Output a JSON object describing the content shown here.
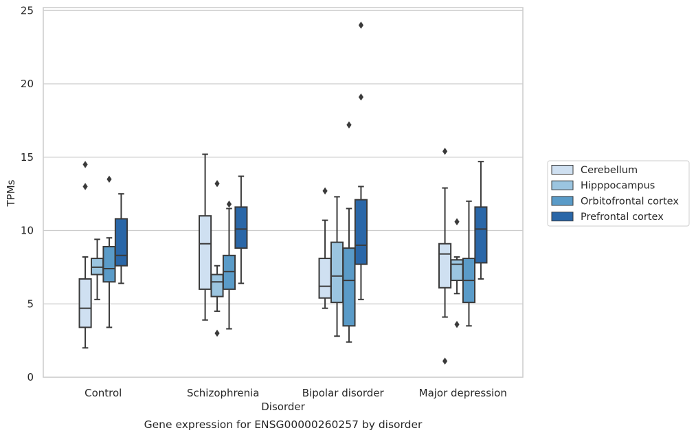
{
  "chart_data": {
    "type": "box",
    "caption": "Gene expression for ENSG00000260257 by disorder",
    "xlabel": "Disorder",
    "ylabel": "TPMs",
    "ylim": [
      0,
      25.2
    ],
    "yticks": [
      0,
      5,
      10,
      15,
      20,
      25
    ],
    "grid": true,
    "legend_position": "right",
    "categories": [
      "Control",
      "Schizophrenia",
      "Bipolar disorder",
      "Major depression"
    ],
    "series": [
      {
        "name": "Cerebellum",
        "color": "#cfe0f1",
        "boxes": [
          {
            "whislo": 2.0,
            "q1": 3.4,
            "med": 4.7,
            "q3": 6.7,
            "whishi": 8.2,
            "fliers": [
              13.0,
              14.5
            ]
          },
          {
            "whislo": 3.9,
            "q1": 6.0,
            "med": 9.1,
            "q3": 11.0,
            "whishi": 15.2,
            "fliers": []
          },
          {
            "whislo": 4.7,
            "q1": 5.4,
            "med": 6.2,
            "q3": 8.1,
            "whishi": 10.7,
            "fliers": [
              12.7
            ]
          },
          {
            "whislo": 4.1,
            "q1": 6.1,
            "med": 8.4,
            "q3": 9.1,
            "whishi": 12.9,
            "fliers": [
              1.1,
              15.4
            ]
          }
        ]
      },
      {
        "name": "Hipppocampus",
        "color": "#9bc5e0",
        "boxes": [
          {
            "whislo": 5.3,
            "q1": 7.0,
            "med": 7.5,
            "q3": 8.1,
            "whishi": 9.4,
            "fliers": []
          },
          {
            "whislo": 4.5,
            "q1": 5.5,
            "med": 6.5,
            "q3": 7.0,
            "whishi": 7.6,
            "fliers": [
              3.0,
              13.2
            ]
          },
          {
            "whislo": 2.8,
            "q1": 5.1,
            "med": 6.9,
            "q3": 9.2,
            "whishi": 12.3,
            "fliers": []
          },
          {
            "whislo": 5.7,
            "q1": 6.6,
            "med": 7.7,
            "q3": 8.0,
            "whishi": 8.2,
            "fliers": [
              3.6,
              10.6
            ]
          }
        ]
      },
      {
        "name": "Orbitofrontal cortex",
        "color": "#5a9bc8",
        "boxes": [
          {
            "whislo": 3.4,
            "q1": 6.5,
            "med": 7.4,
            "q3": 8.9,
            "whishi": 9.5,
            "fliers": [
              13.5
            ]
          },
          {
            "whislo": 3.3,
            "q1": 6.0,
            "med": 7.2,
            "q3": 8.3,
            "whishi": 11.5,
            "fliers": [
              11.8
            ]
          },
          {
            "whislo": 2.4,
            "q1": 3.5,
            "med": 6.6,
            "q3": 8.8,
            "whishi": 11.5,
            "fliers": [
              17.2
            ]
          },
          {
            "whislo": 3.5,
            "q1": 5.1,
            "med": 6.6,
            "q3": 8.1,
            "whishi": 12.0,
            "fliers": []
          }
        ]
      },
      {
        "name": "Prefrontal cortex",
        "color": "#2a67a8",
        "boxes": [
          {
            "whislo": 6.4,
            "q1": 7.6,
            "med": 8.3,
            "q3": 10.8,
            "whishi": 12.5,
            "fliers": []
          },
          {
            "whislo": 6.4,
            "q1": 8.8,
            "med": 10.1,
            "q3": 11.6,
            "whishi": 13.7,
            "fliers": []
          },
          {
            "whislo": 5.3,
            "q1": 7.7,
            "med": 9.0,
            "q3": 12.1,
            "whishi": 13.0,
            "fliers": [
              19.1,
              24.0
            ]
          },
          {
            "whislo": 6.7,
            "q1": 7.8,
            "med": 10.1,
            "q3": 11.6,
            "whishi": 14.7,
            "fliers": []
          }
        ]
      }
    ]
  }
}
